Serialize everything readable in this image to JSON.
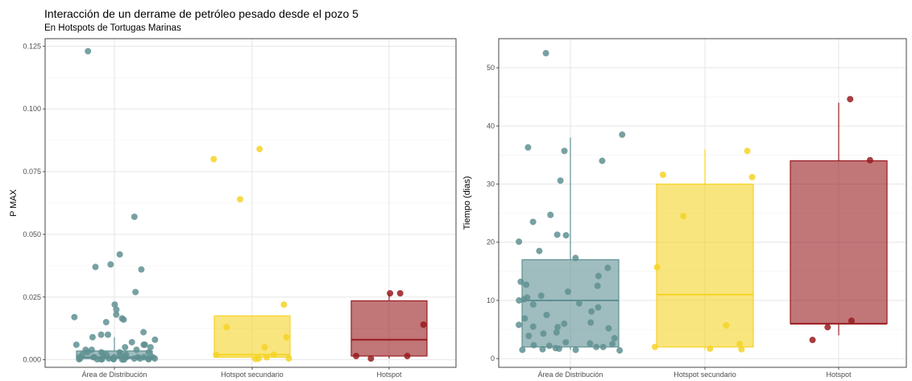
{
  "title": "Interacción de un derrame de petróleo pesado desde el pozo 5",
  "subtitle": "En Hotspots de Tortugas Marinas",
  "colors": {
    "distribucion": "#5f9092",
    "secundario": "#f5d327",
    "hotspot": "#981b1e"
  },
  "chart_data": [
    {
      "type": "box",
      "title": "",
      "xlabel": "",
      "ylabel": "P MAX",
      "categories": [
        "Área de Distribución",
        "Hotspot secundario",
        "Hotspot"
      ],
      "ylim": [
        -0.003,
        0.128
      ],
      "yticks": [
        0.0,
        0.025,
        0.05,
        0.075,
        0.1,
        0.125
      ],
      "ytick_labels": [
        "0.000",
        "0.025",
        "0.050",
        "0.075",
        "0.100",
        "0.125"
      ],
      "grid": true,
      "boxes": [
        {
          "category": "Área de Distribución",
          "min": 0.0,
          "q1": 0.0005,
          "median": 0.001,
          "q3": 0.0035,
          "max": 0.009
        },
        {
          "category": "Hotspot secundario",
          "min": 0.0,
          "q1": 0.001,
          "median": 0.002,
          "q3": 0.0175,
          "max": 0.0175
        },
        {
          "category": "Hotspot",
          "min": 0.0005,
          "q1": 0.0015,
          "median": 0.008,
          "q3": 0.0235,
          "max": 0.0265
        }
      ],
      "points": [
        {
          "category": "Área de Distribución",
          "values": [
            0.123,
            0.057,
            0.042,
            0.038,
            0.037,
            0.036,
            0.027,
            0.022,
            0.02,
            0.018,
            0.017,
            0.0165,
            0.016,
            0.015,
            0.011,
            0.01,
            0.01,
            0.009,
            0.008,
            0.007,
            0.006,
            0.006,
            0.006,
            0.005,
            0.005,
            0.004,
            0.004,
            0.004,
            0.003,
            0.003,
            0.003,
            0.003,
            0.002,
            0.002,
            0.002,
            0.002,
            0.002,
            0.001,
            0.001,
            0.001,
            0.001,
            0.001,
            0.001,
            0.001,
            0.001,
            0.0005,
            0.0005,
            0.0005,
            0.0005,
            0.0005,
            0.0005,
            0.0005,
            0.0002,
            0.0002,
            0.0002,
            0.0002,
            0.0002,
            0.0002,
            0.0001,
            0.0001
          ]
        },
        {
          "category": "Hotspot secundario",
          "values": [
            0.084,
            0.08,
            0.064,
            0.022,
            0.013,
            0.009,
            0.005,
            0.002,
            0.002,
            0.001,
            0.0005,
            0.0005,
            0.0003
          ]
        },
        {
          "category": "Hotspot",
          "values": [
            0.0265,
            0.0265,
            0.014,
            0.0015,
            0.0015,
            0.0005
          ]
        }
      ]
    },
    {
      "type": "box",
      "title": "",
      "xlabel": "",
      "ylabel": "Tiempo (dias)",
      "categories": [
        "Área de Distribución",
        "Hotspot secundario",
        "Hotspot"
      ],
      "ylim": [
        -1.5,
        55
      ],
      "yticks": [
        0,
        10,
        20,
        30,
        40,
        50
      ],
      "ytick_labels": [
        "0",
        "10",
        "20",
        "30",
        "40",
        "50"
      ],
      "grid": true,
      "boxes": [
        {
          "category": "Área de Distribución",
          "min": 1.5,
          "q1": 2.0,
          "median": 10.0,
          "q3": 17.0,
          "max": 38.0
        },
        {
          "category": "Hotspot secundario",
          "min": 1.5,
          "q1": 2.0,
          "median": 11.0,
          "q3": 30.0,
          "max": 36.0
        },
        {
          "category": "Hotspot",
          "min": 4.0,
          "q1": 6.0,
          "median": 6.0,
          "q3": 34.0,
          "max": 44.0
        }
      ],
      "points": [
        {
          "category": "Área de Distribución",
          "values": [
            52.5,
            38.5,
            36.3,
            35.7,
            34.0,
            30.6,
            24.7,
            23.5,
            21.3,
            21.2,
            20.1,
            18.5,
            17.3,
            15.6,
            14.2,
            13.2,
            12.7,
            12.5,
            11.5,
            10.8,
            10.5,
            10.2,
            10.0,
            9.5,
            9.3,
            8.8,
            8.1,
            7.5,
            6.9,
            6.2,
            6.0,
            5.8,
            5.5,
            5.4,
            5.2,
            4.5,
            4.3,
            3.9,
            3.5,
            2.8,
            2.6,
            2.5,
            2.3,
            2.2,
            2.0,
            2.0,
            1.8,
            1.7,
            1.6,
            1.5,
            1.5,
            1.4
          ]
        },
        {
          "category": "Hotspot secundario",
          "values": [
            35.7,
            31.6,
            31.2,
            24.5,
            15.7,
            5.7,
            2.5,
            2.0,
            1.7,
            1.6
          ]
        },
        {
          "category": "Hotspot",
          "values": [
            44.6,
            34.1,
            6.5,
            5.4,
            3.2
          ]
        }
      ]
    }
  ]
}
